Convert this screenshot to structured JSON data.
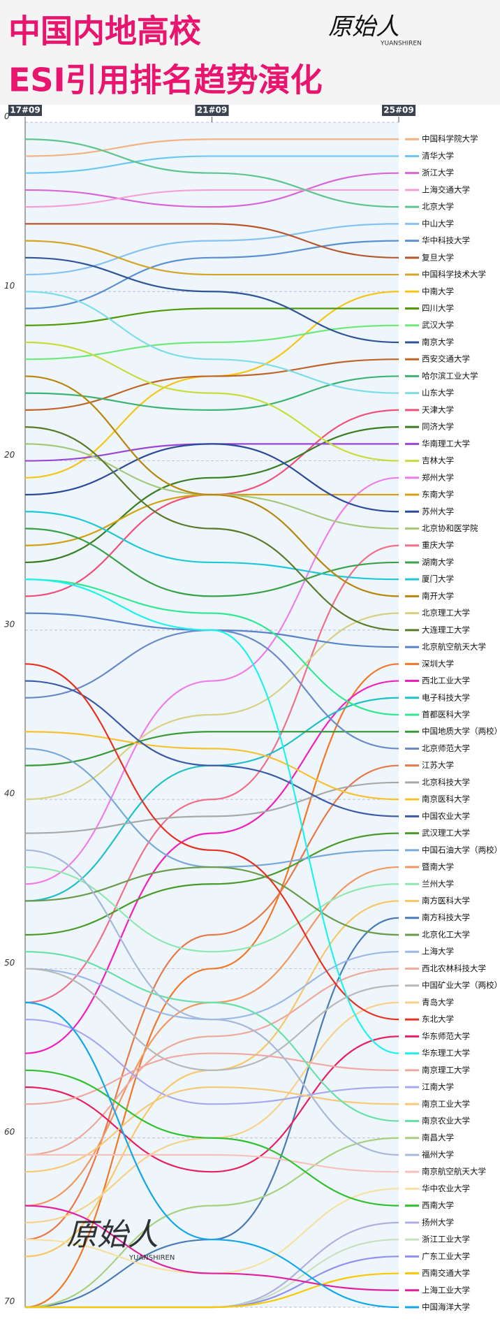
{
  "chart_data": {
    "type": "bump",
    "title": "中国内地高校",
    "subtitle": "ESI引用排名趋势演化",
    "watermark": "原始人",
    "watermark_sub": "YUANSHIREN",
    "x": [
      "17#09",
      "21#09",
      "25#09"
    ],
    "ylim": [
      0,
      70
    ],
    "y_inverted": true,
    "yticks": [
      0,
      10,
      20,
      30,
      40,
      50,
      60,
      70
    ],
    "grid": true,
    "series": [
      {
        "name": "中国科学院大学",
        "color": "#f4b183",
        "values": [
          2,
          1,
          1
        ]
      },
      {
        "name": "清华大学",
        "color": "#6cc8f0",
        "values": [
          3,
          2,
          2
        ]
      },
      {
        "name": "浙江大学",
        "color": "#d966d6",
        "values": [
          4,
          5,
          3
        ]
      },
      {
        "name": "上海交通大学",
        "color": "#f59fd6",
        "values": [
          5,
          4,
          4
        ]
      },
      {
        "name": "北京大学",
        "color": "#5fc48f",
        "values": [
          1,
          3,
          5
        ]
      },
      {
        "name": "中山大学",
        "color": "#86c2f0",
        "values": [
          9,
          7,
          6
        ]
      },
      {
        "name": "华中科技大学",
        "color": "#5b8fd0",
        "values": [
          11,
          8,
          7
        ]
      },
      {
        "name": "复旦大学",
        "color": "#b5572a",
        "values": [
          6,
          6,
          8
        ]
      },
      {
        "name": "中国科学技术大学",
        "color": "#d4a52a",
        "values": [
          7,
          9,
          9
        ]
      },
      {
        "name": "中南大学",
        "color": "#f5c518",
        "values": [
          21,
          15,
          10
        ]
      },
      {
        "name": "四川大学",
        "color": "#4e9a06",
        "values": [
          12,
          11,
          11
        ]
      },
      {
        "name": "武汉大学",
        "color": "#6ee87a",
        "values": [
          14,
          13,
          12
        ]
      },
      {
        "name": "南京大学",
        "color": "#2f5597",
        "values": [
          8,
          10,
          13
        ]
      },
      {
        "name": "西安交通大学",
        "color": "#c0652a",
        "values": [
          17,
          15,
          14
        ]
      },
      {
        "name": "哈尔滨工业大学",
        "color": "#3cb371",
        "values": [
          16,
          17,
          15
        ]
      },
      {
        "name": "山东大学",
        "color": "#7ddde8",
        "values": [
          10,
          14,
          16
        ]
      },
      {
        "name": "天津大学",
        "color": "#f0507a",
        "values": [
          28,
          22,
          17
        ]
      },
      {
        "name": "同济大学",
        "color": "#3a7d22",
        "values": [
          26,
          21,
          18
        ]
      },
      {
        "name": "华南理工大学",
        "color": "#9b45d4",
        "values": [
          20,
          19,
          19
        ]
      },
      {
        "name": "吉林大学",
        "color": "#c8dc3c",
        "values": [
          13,
          16,
          20
        ]
      },
      {
        "name": "郑州大学",
        "color": "#f07ce8",
        "values": [
          45,
          33,
          21
        ]
      },
      {
        "name": "东南大学",
        "color": "#d4a010",
        "values": [
          25,
          22,
          22
        ]
      },
      {
        "name": "苏州大学",
        "color": "#2a4a9a",
        "values": [
          22,
          19,
          23
        ]
      },
      {
        "name": "北京协和医学院",
        "color": "#a5c87a",
        "values": [
          19,
          22,
          24
        ]
      },
      {
        "name": "重庆大学",
        "color": "#f0708a",
        "values": [
          52,
          40,
          25
        ]
      },
      {
        "name": "湖南大学",
        "color": "#3aa04a",
        "values": [
          24,
          28,
          26
        ]
      },
      {
        "name": "厦门大学",
        "color": "#1fc8d8",
        "values": [
          23,
          26,
          27
        ]
      },
      {
        "name": "南开大学",
        "color": "#b8860b",
        "values": [
          15,
          22,
          28
        ]
      },
      {
        "name": "北京理工大学",
        "color": "#d8d080",
        "values": [
          40,
          35,
          29
        ]
      },
      {
        "name": "大连理工大学",
        "color": "#5a7a2a",
        "values": [
          18,
          24,
          30
        ]
      },
      {
        "name": "北京航空航天大学",
        "color": "#5a82c8",
        "values": [
          29,
          30,
          31
        ]
      },
      {
        "name": "深圳大学",
        "color": "#f07828",
        "values": [
          70,
          50,
          32
        ]
      },
      {
        "name": "西北工业大学",
        "color": "#f020c0",
        "values": [
          55,
          42,
          33
        ]
      },
      {
        "name": "电子科技大学",
        "color": "#20c0c8",
        "values": [
          46,
          38,
          34
        ]
      },
      {
        "name": "首都医科大学",
        "color": "#30e890",
        "values": [
          27,
          29,
          35
        ]
      },
      {
        "name": "中国地质大学（两校）",
        "color": "#3a9a3a",
        "values": [
          38,
          36,
          36
        ]
      },
      {
        "name": "北京师范大学",
        "color": "#6a8ac8",
        "values": [
          34,
          30,
          37
        ]
      },
      {
        "name": "江苏大学",
        "color": "#e87848",
        "values": [
          66,
          48,
          38
        ]
      },
      {
        "name": "北京科技大学",
        "color": "#a8a8a8",
        "values": [
          42,
          41,
          39
        ]
      },
      {
        "name": "南京医科大学",
        "color": "#f8c030",
        "values": [
          36,
          37,
          40
        ]
      },
      {
        "name": "中国农业大学",
        "color": "#3a5aa8",
        "values": [
          33,
          38,
          41
        ]
      },
      {
        "name": "武汉理工大学",
        "color": "#4a9a2a",
        "values": [
          48,
          45,
          42
        ]
      },
      {
        "name": "中国石油大学（两校）",
        "color": "#78a8d8",
        "values": [
          37,
          44,
          43
        ]
      },
      {
        "name": "暨南大学",
        "color": "#f09860",
        "values": [
          64,
          52,
          44
        ]
      },
      {
        "name": "兰州大学",
        "color": "#90e8b0",
        "values": [
          44,
          49,
          45
        ]
      },
      {
        "name": "南方医科大学",
        "color": "#f8c868",
        "values": [
          67,
          56,
          46
        ]
      },
      {
        "name": "南方科技大学",
        "color": "#4a7ab8",
        "values": [
          70,
          66,
          47
        ]
      },
      {
        "name": "北京化工大学",
        "color": "#6a9a4a",
        "values": [
          46,
          44,
          48
        ]
      },
      {
        "name": "上海大学",
        "color": "#9ab8e8",
        "values": [
          50,
          53,
          49
        ]
      },
      {
        "name": "西北农林科技大学",
        "color": "#f0a898",
        "values": [
          61,
          54,
          50
        ]
      },
      {
        "name": "中国矿业大学（两校）",
        "color": "#b8b8b8",
        "values": [
          50,
          56,
          51
        ]
      },
      {
        "name": "青岛大学",
        "color": "#f8d088",
        "values": [
          65,
          60,
          52
        ]
      },
      {
        "name": "东北大学",
        "color": "#e83020",
        "values": [
          32,
          43,
          53
        ]
      },
      {
        "name": "华东师范大学",
        "color": "#e82060",
        "values": [
          57,
          62,
          54
        ]
      },
      {
        "name": "华东理工大学",
        "color": "#20f0f0",
        "values": [
          27,
          30,
          55
        ]
      },
      {
        "name": "南京理工大学",
        "color": "#f0a8a0",
        "values": [
          58,
          55,
          56
        ]
      },
      {
        "name": "江南大学",
        "color": "#a8a8f0",
        "values": [
          53,
          58,
          57
        ]
      },
      {
        "name": "南京工业大学",
        "color": "#f8c878",
        "values": [
          62,
          57,
          58
        ]
      },
      {
        "name": "南京农业大学",
        "color": "#68e0a8",
        "values": [
          49,
          52,
          59
        ]
      },
      {
        "name": "南昌大学",
        "color": "#a8d080",
        "values": [
          70,
          64,
          60
        ]
      },
      {
        "name": "福州大学",
        "color": "#a8b8d8",
        "values": [
          43,
          53,
          61
        ]
      },
      {
        "name": "南京航空航天大学",
        "color": "#f8c0b8",
        "values": [
          61,
          61,
          62
        ]
      },
      {
        "name": "华中农业大学",
        "color": "#f8e0a0",
        "values": [
          66,
          68,
          63
        ]
      },
      {
        "name": "西南大学",
        "color": "#30c030",
        "values": [
          56,
          60,
          64
        ]
      },
      {
        "name": "扬州大学",
        "color": "#b0b0e0",
        "values": [
          70,
          70,
          65
        ]
      },
      {
        "name": "浙江工业大学",
        "color": "#c8e0c0",
        "values": [
          70,
          70,
          66
        ]
      },
      {
        "name": "广东工业大学",
        "color": "#9090f0",
        "values": [
          70,
          70,
          67
        ]
      },
      {
        "name": "西南交通大学",
        "color": "#f8c800",
        "values": [
          70,
          70,
          68
        ]
      },
      {
        "name": "上海工业大学",
        "color": "#e020a0",
        "values": [
          64,
          68,
          69
        ]
      },
      {
        "name": "中国海洋大学",
        "color": "#10a8e8",
        "values": [
          52,
          66,
          70
        ]
      }
    ]
  }
}
